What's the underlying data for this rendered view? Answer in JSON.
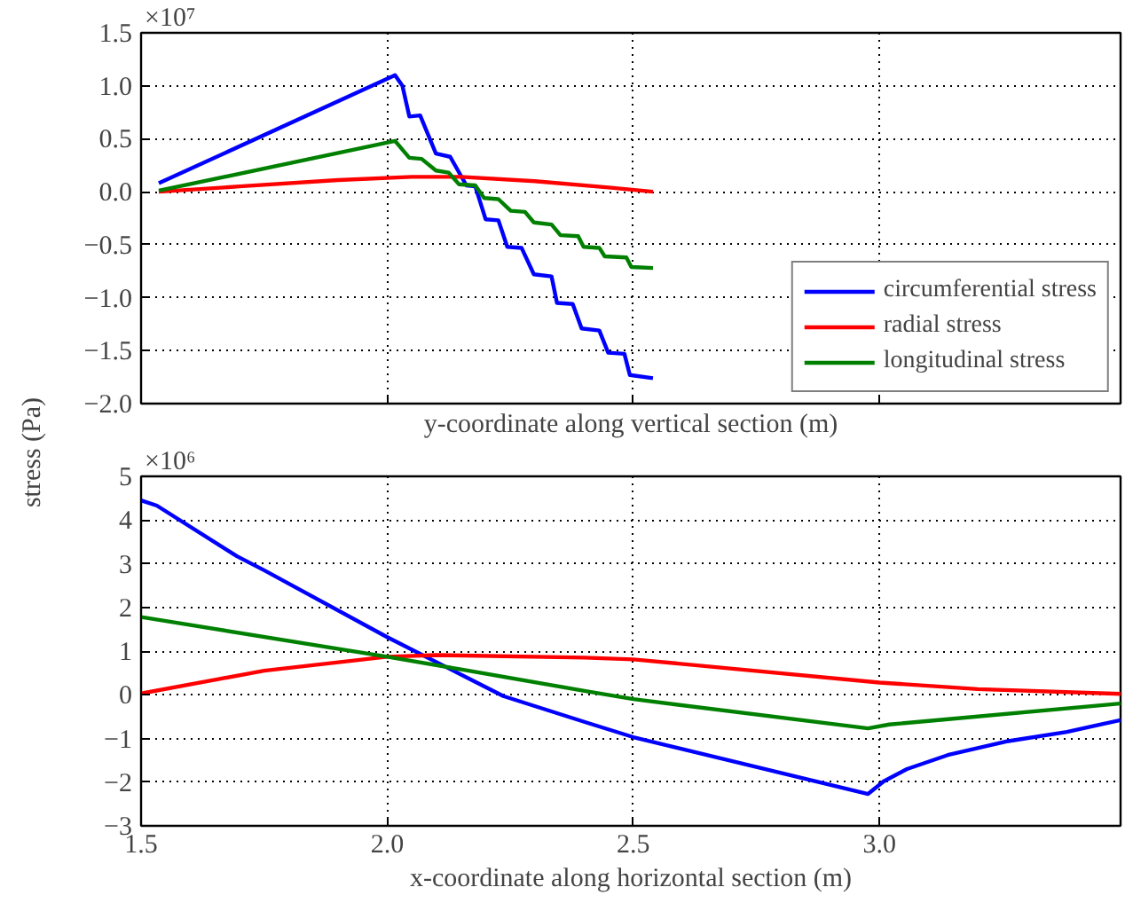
{
  "chart_data": [
    {
      "type": "line",
      "xlabel": "y-coordinate along vertical section (m)",
      "ylabel": "stress (Pa)",
      "annotations": [
        "×10⁷"
      ],
      "xlim": [
        1.5,
        3.49
      ],
      "xticks": [
        1.5,
        2.0,
        2.5,
        3.0
      ],
      "ylim": [
        -2.0,
        1.5
      ],
      "yticks": [
        {
          "value": 1.5,
          "label": "1.5"
        },
        {
          "value": 1.0,
          "label": "1.0"
        },
        {
          "value": 0.5,
          "label": "0.5"
        },
        {
          "value": 0.0,
          "label": "0.0"
        },
        {
          "value": -0.5,
          "label": "−0.5"
        },
        {
          "value": -1.0,
          "label": "−1.0"
        },
        {
          "value": -1.5,
          "label": "−1.5"
        },
        {
          "value": -2.0,
          "label": "−2.0"
        }
      ],
      "tick_labels": "y",
      "grid": true,
      "legend": "bottom right",
      "line_style": "solid",
      "series": [
        {
          "name": "circumferential stress",
          "color": "#0000ff",
          "x": [
            1.536,
            2.016,
            2.031,
            2.045,
            2.067,
            2.099,
            2.128,
            2.161,
            2.179,
            2.2,
            2.226,
            2.244,
            2.273,
            2.298,
            2.334,
            2.345,
            2.377,
            2.395,
            2.431,
            2.449,
            2.482,
            2.493,
            2.54
          ],
          "values": [
            0.08,
            1.1,
            1.0,
            0.71,
            0.72,
            0.36,
            0.33,
            0.06,
            0.05,
            -0.26,
            -0.27,
            -0.52,
            -0.53,
            -0.78,
            -0.8,
            -1.05,
            -1.06,
            -1.29,
            -1.31,
            -1.52,
            -1.53,
            -1.73,
            -1.76
          ]
        },
        {
          "name": "radial stress",
          "color": "#ff0000",
          "x": [
            1.536,
            1.7,
            1.9,
            2.05,
            2.15,
            2.3,
            2.45,
            2.54
          ],
          "values": [
            0.0,
            0.05,
            0.11,
            0.14,
            0.14,
            0.1,
            0.04,
            0.0
          ]
        },
        {
          "name": "longitudinal stress",
          "color": "#008000",
          "x": [
            1.536,
            2.016,
            2.045,
            2.07,
            2.099,
            2.125,
            2.146,
            2.179,
            2.197,
            2.226,
            2.251,
            2.28,
            2.298,
            2.334,
            2.352,
            2.388,
            2.399,
            2.431,
            2.442,
            2.486,
            2.496,
            2.54
          ],
          "values": [
            0.01,
            0.48,
            0.32,
            0.31,
            0.2,
            0.18,
            0.07,
            0.06,
            -0.06,
            -0.07,
            -0.18,
            -0.19,
            -0.29,
            -0.31,
            -0.41,
            -0.42,
            -0.52,
            -0.53,
            -0.61,
            -0.62,
            -0.71,
            -0.72
          ]
        }
      ]
    },
    {
      "type": "line",
      "xlabel": "x-coordinate along horizontal section (m)",
      "annotations": [
        "×10⁶"
      ],
      "xlim": [
        1.5,
        3.49
      ],
      "ylim": [
        -3,
        5
      ],
      "yticks": [
        5,
        4,
        3,
        2,
        1,
        0,
        {
          "value": -1,
          "label": "−1"
        },
        {
          "value": -2,
          "label": "−2"
        },
        {
          "value": -3,
          "label": "−3"
        }
      ],
      "xticks": [
        {
          "value": 1.5,
          "label": "1.5"
        },
        {
          "value": 2.0,
          "label": "2.0"
        },
        {
          "value": 2.5,
          "label": "2.5"
        },
        {
          "value": 3.0,
          "label": "3.0"
        }
      ],
      "grid": true,
      "line_style": "solid",
      "series": [
        {
          "color": "#0000ff",
          "x": [
            1.5,
            1.532,
            1.695,
            1.75,
            2.0,
            2.236,
            2.406,
            2.5,
            2.977,
            3.009,
            3.056,
            3.139,
            3.262,
            3.381,
            3.442,
            3.49
          ],
          "values": [
            4.45,
            4.33,
            3.17,
            2.85,
            1.32,
            -0.03,
            -0.64,
            -0.97,
            -2.27,
            -1.98,
            -1.7,
            -1.38,
            -1.06,
            -0.85,
            -0.7,
            -0.58
          ]
        },
        {
          "color": "#ff0000",
          "x": [
            1.5,
            1.75,
            2.0,
            2.1,
            2.4,
            2.5,
            3.0,
            3.2,
            3.49
          ],
          "values": [
            0.03,
            0.55,
            0.87,
            0.91,
            0.85,
            0.81,
            0.28,
            0.13,
            0.02
          ]
        },
        {
          "color": "#008000",
          "x": [
            1.5,
            2.0,
            2.15,
            2.406,
            2.5,
            2.977,
            3.02,
            3.1,
            3.49
          ],
          "values": [
            1.78,
            0.87,
            0.58,
            0.08,
            -0.1,
            -0.77,
            -0.68,
            -0.6,
            -0.2
          ]
        }
      ]
    }
  ]
}
